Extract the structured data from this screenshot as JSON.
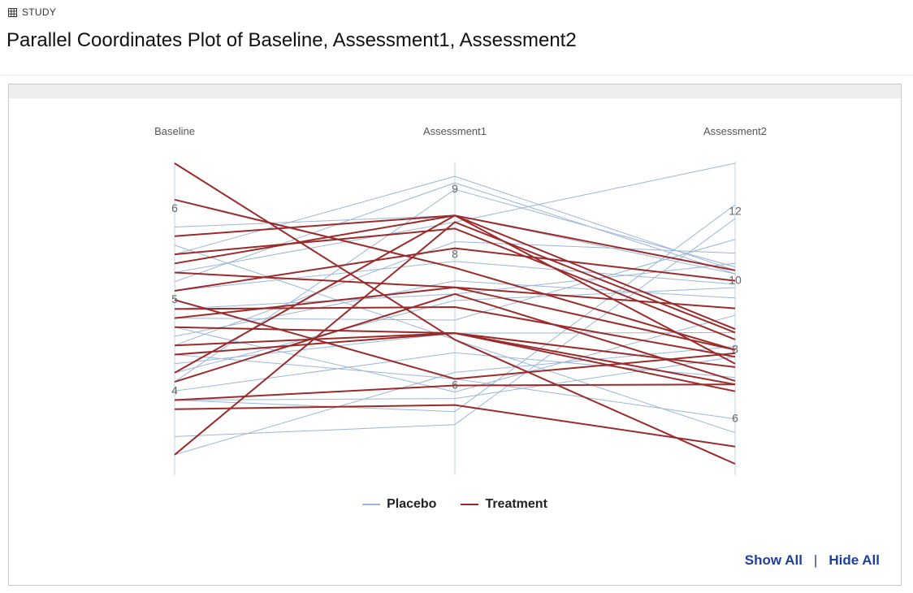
{
  "breadcrumb": {
    "label": "STUDY",
    "icon": "table-grid-icon"
  },
  "page": {
    "title": "Parallel Coordinates Plot of Baseline, Assessment1, Assessment2"
  },
  "links": {
    "show_all": "Show All",
    "separator": "|",
    "hide_all": "Hide All"
  },
  "colors": {
    "placebo": "#9ab6d9",
    "treatment": "#9b2b2b",
    "axis": "#d6e0ec",
    "tick_text": "#666666"
  },
  "chart_data": {
    "type": "parallel-coordinates",
    "title": "",
    "axes": [
      {
        "name": "Baseline",
        "range": [
          3.2,
          6.5
        ],
        "ticks": [
          4,
          5,
          6
        ]
      },
      {
        "name": "Assessment1",
        "range": [
          4.8,
          9.4
        ],
        "ticks": [
          6,
          8,
          9
        ]
      },
      {
        "name": "Assessment2",
        "range": [
          4.7,
          13.4
        ],
        "ticks": [
          6,
          8,
          10,
          12
        ]
      }
    ],
    "legend": {
      "position": "bottom-center"
    },
    "series": [
      {
        "name": "Placebo",
        "lines": [
          [
            5.8,
            8.6,
            10.2
          ],
          [
            5.5,
            9.2,
            10.3
          ],
          [
            5.3,
            8.5,
            13.4
          ],
          [
            5.1,
            7.9,
            9.9
          ],
          [
            4.9,
            7.4,
            10.5
          ],
          [
            4.8,
            7.0,
            11.2
          ],
          [
            4.7,
            5.9,
            9.0
          ],
          [
            4.6,
            7.6,
            9.5
          ],
          [
            4.5,
            8.2,
            10.8
          ],
          [
            4.4,
            6.1,
            6.0
          ],
          [
            4.3,
            6.8,
            8.5
          ],
          [
            4.2,
            7.3,
            9.8
          ],
          [
            4.1,
            9.0,
            10.4
          ],
          [
            4.0,
            6.5,
            7.2
          ],
          [
            3.9,
            5.8,
            7.8
          ],
          [
            3.5,
            5.4,
            11.8
          ],
          [
            3.3,
            6.2,
            8.1
          ],
          [
            5.6,
            6.7,
            5.6
          ],
          [
            5.2,
            9.1,
            10.2
          ],
          [
            3.9,
            5.6,
            12.2
          ]
        ]
      },
      {
        "name": "Treatment",
        "lines": [
          [
            6.5,
            6.7,
            4.7
          ],
          [
            6.1,
            7.8,
            8.0
          ],
          [
            5.7,
            8.6,
            10.3
          ],
          [
            5.5,
            8.4,
            8.3
          ],
          [
            5.4,
            8.6,
            8.6
          ],
          [
            5.3,
            7.5,
            9.2
          ],
          [
            5.1,
            8.1,
            10.0
          ],
          [
            4.9,
            7.2,
            7.8
          ],
          [
            4.8,
            7.5,
            8.0
          ],
          [
            4.7,
            6.8,
            7.5
          ],
          [
            4.5,
            6.8,
            6.8
          ],
          [
            4.2,
            8.6,
            7.6
          ],
          [
            4.1,
            7.4,
            7.1
          ],
          [
            3.9,
            6.0,
            7.0
          ],
          [
            3.8,
            5.7,
            5.2
          ],
          [
            3.3,
            8.5,
            8.5
          ],
          [
            5.0,
            6.1,
            7.9
          ],
          [
            4.4,
            6.8,
            7.0
          ]
        ]
      }
    ]
  }
}
